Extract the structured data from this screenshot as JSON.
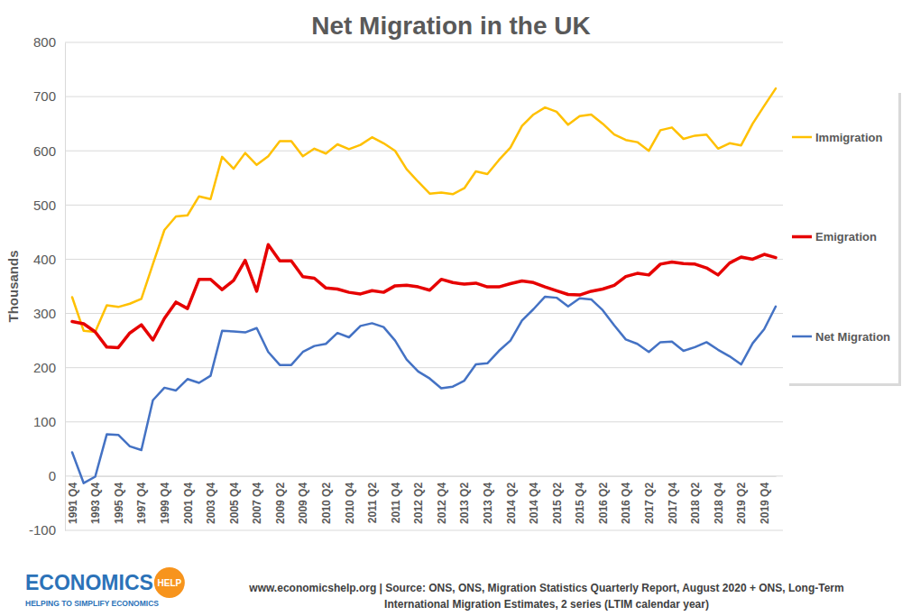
{
  "chart_data": {
    "type": "line",
    "title": "Net Migration in the UK",
    "ylabel": "Thousands",
    "categories": [
      "1991 Q4",
      null,
      "1993 Q4",
      null,
      "1995 Q4",
      null,
      "1997 Q4",
      null,
      "1999 Q4",
      null,
      "2001 Q4",
      null,
      "2003 Q4",
      null,
      "2005 Q4",
      null,
      "2007 Q4",
      null,
      "2009 Q2",
      null,
      "2009 Q4",
      null,
      "2010 Q2",
      null,
      "2010 Q4",
      null,
      "2011 Q2",
      null,
      "2011 Q4",
      null,
      "2012 Q2",
      null,
      "2012 Q4",
      null,
      "2013 Q2",
      null,
      "2013 Q4",
      null,
      "2014 Q2",
      null,
      "2014 Q4",
      null,
      "2015 Q2",
      null,
      "2015 Q4",
      null,
      "2016 Q2",
      null,
      "2016 Q4",
      null,
      "2017 Q2",
      null,
      "2017 Q4",
      null,
      "2018 Q2",
      null,
      "2018 Q4",
      null,
      "2019 Q2",
      null,
      "2019 Q4",
      null
    ],
    "series": [
      {
        "name": "Immigration",
        "color": "#ffc000",
        "values": [
          330,
          268,
          266,
          315,
          312,
          318,
          327,
          391,
          454,
          479,
          481,
          516,
          511,
          589,
          567,
          596,
          574,
          590,
          618,
          618,
          590,
          604,
          595,
          612,
          603,
          611,
          625,
          614,
          600,
          566,
          543,
          521,
          523,
          520,
          531,
          562,
          557,
          583,
          606,
          646,
          667,
          680,
          672,
          648,
          664,
          667,
          650,
          630,
          620,
          616,
          600,
          638,
          643,
          622,
          628,
          630,
          604,
          614,
          610,
          650,
          683,
          715
        ]
      },
      {
        "name": "Emigration",
        "color": "#e60000",
        "values": [
          285,
          281,
          266,
          238,
          237,
          264,
          279,
          251,
          291,
          321,
          309,
          363,
          363,
          344,
          361,
          398,
          341,
          427,
          397,
          397,
          368,
          365,
          347,
          345,
          339,
          336,
          342,
          339,
          351,
          352,
          349,
          343,
          363,
          357,
          354,
          356,
          349,
          349,
          355,
          360,
          357,
          349,
          342,
          335,
          334,
          341,
          345,
          352,
          368,
          374,
          371,
          391,
          395,
          392,
          391,
          384,
          371,
          393,
          404,
          400,
          409,
          403
        ]
      },
      {
        "name": "Net Migration",
        "color": "#4472c4",
        "values": [
          44,
          -13,
          -1,
          77,
          76,
          55,
          48,
          140,
          163,
          158,
          179,
          172,
          185,
          268,
          267,
          265,
          273,
          229,
          205,
          205,
          229,
          240,
          244,
          264,
          256,
          277,
          282,
          275,
          250,
          215,
          193,
          180,
          162,
          165,
          176,
          206,
          208,
          231,
          250,
          287,
          308,
          331,
          329,
          313,
          328,
          326,
          306,
          278,
          252,
          244,
          229,
          247,
          248,
          231,
          238,
          247,
          233,
          221,
          206,
          245,
          271,
          313
        ]
      }
    ],
    "ylim": [
      -100,
      800
    ],
    "yticks": [
      -100,
      0,
      100,
      200,
      300,
      400,
      500,
      600,
      700,
      800
    ],
    "grid": true,
    "legend": "right"
  },
  "footer": {
    "logo": "ECONOMICS",
    "logo_badge": "HELP",
    "tagline": "HELPING TO SIMPLIFY ECONOMICS",
    "source": [
      "www.economicshelp.org | Source: ONS, ONS, Migration Statistics Quarterly Report, August 2020 + ONS, Long-Term",
      "International Migration Estimates, 2 series (LTIM calendar year)"
    ]
  }
}
